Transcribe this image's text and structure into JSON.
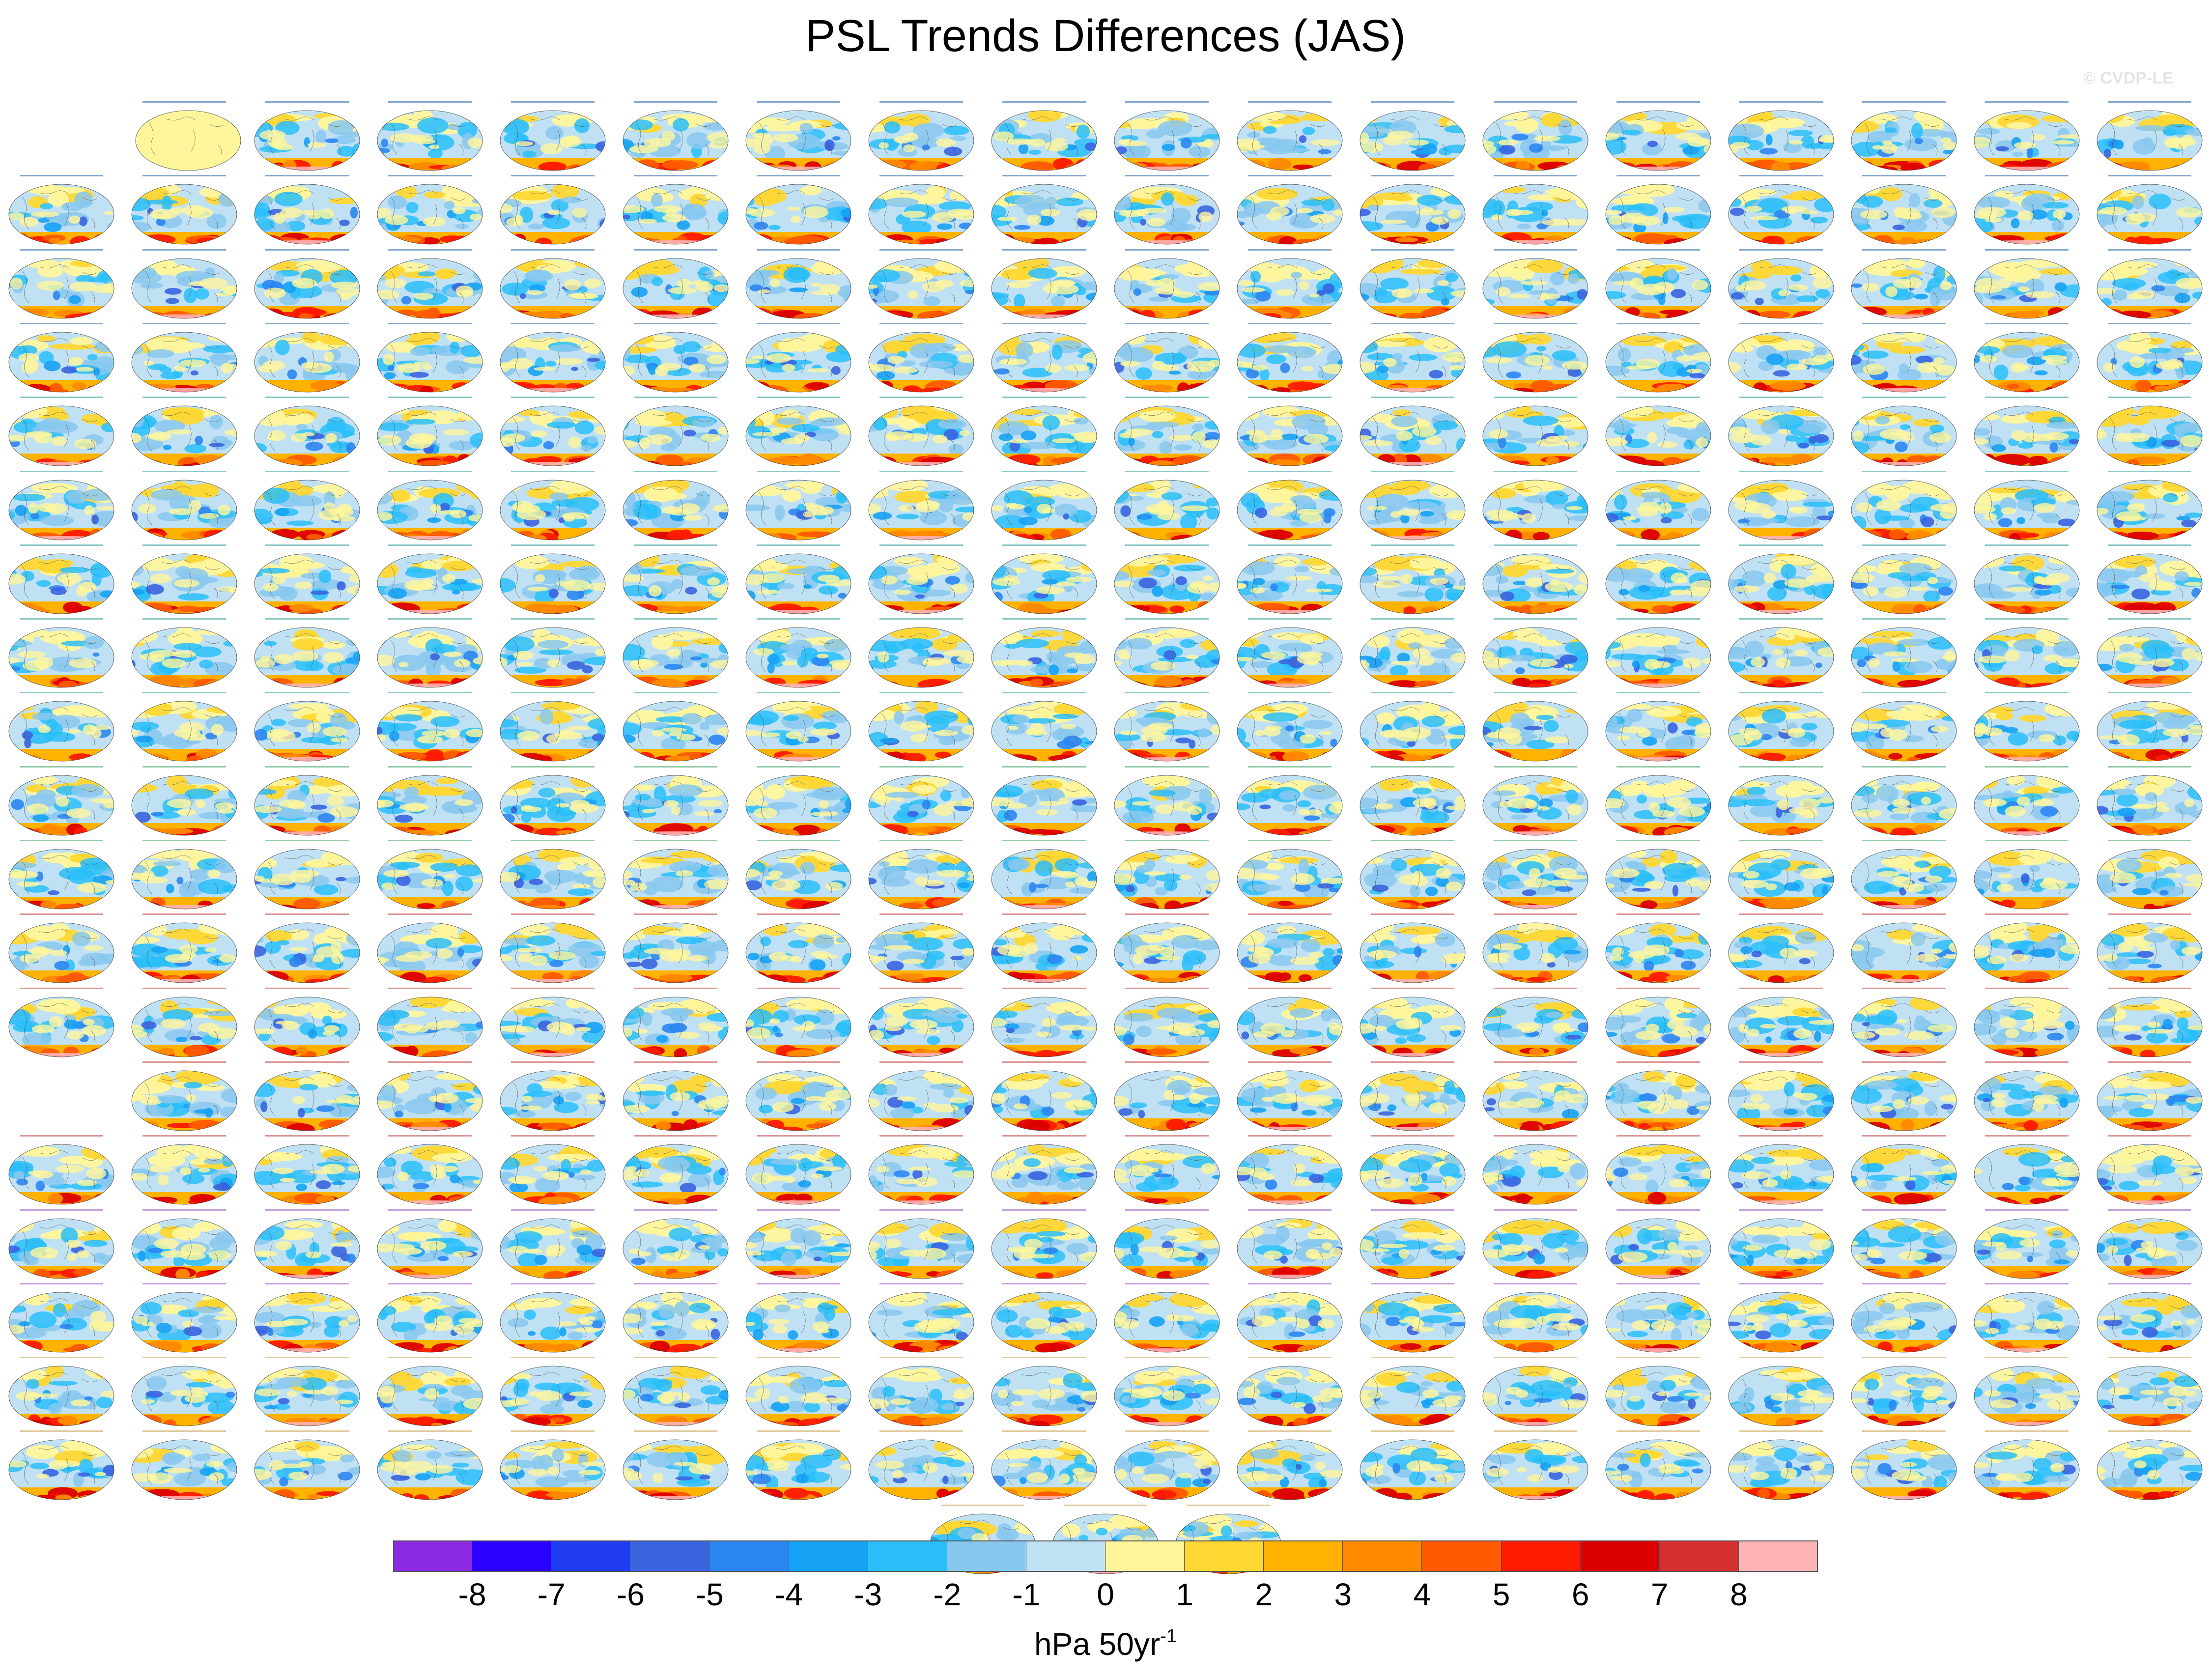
{
  "title": "PSL Trends Differences (JAS)",
  "credit": "© CVDP-LE",
  "colorbar": {
    "levels": [
      "-8",
      "-7",
      "-6",
      "-5",
      "-4",
      "-3",
      "-2",
      "-1",
      "0",
      "1",
      "2",
      "3",
      "4",
      "5",
      "6",
      "7",
      "8"
    ],
    "colors": [
      "#8a2be2",
      "#2a00ff",
      "#1f3cf0",
      "#3a64e0",
      "#2c86f2",
      "#16a2f5",
      "#29bef9",
      "#88c8ee",
      "#bfe1f3",
      "#fff69c",
      "#ffd733",
      "#ffb300",
      "#ff8a00",
      "#ff5a00",
      "#ff1a00",
      "#dd0000",
      "#d43030",
      "#ffb3b6"
    ]
  },
  "units": {
    "base": "hPa 50yr",
    "exponent": "-1"
  },
  "panels": {
    "rows": 19,
    "columns": 18,
    "extra_row_count": 3,
    "row_label_colors": [
      "#1f5fa8",
      "#1f5fa8",
      "#1f5fa8",
      "#1f5fa8",
      "#2a9a9a",
      "#2a9a9a",
      "#2a9a9a",
      "#2a9a9a",
      "#2a9a9a",
      "#3aa060",
      "#3aa060",
      "#c04040",
      "#c04040",
      "#c04040",
      "#c04040",
      "#9a50c0",
      "#9a50c0",
      "#c8a050",
      "#c8a050"
    ]
  }
}
